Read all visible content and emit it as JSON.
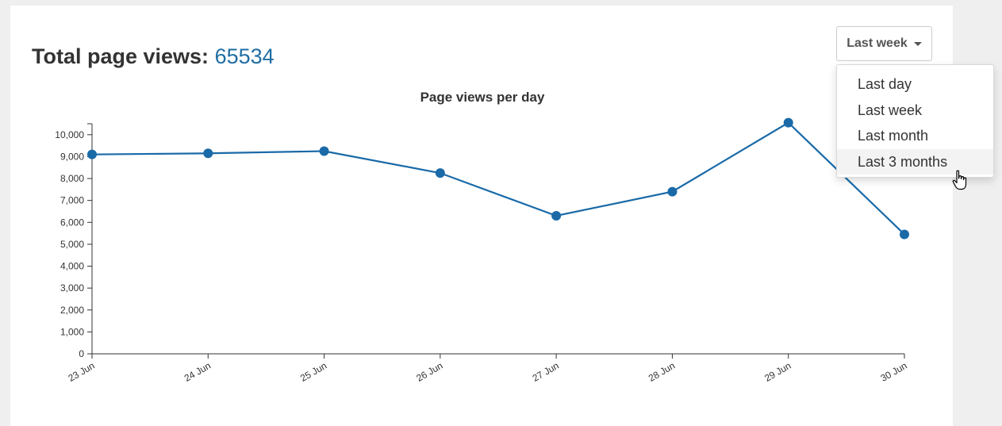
{
  "header": {
    "total_label": "Total page views:",
    "total_value": "65534"
  },
  "range_selector": {
    "selected": "Last week",
    "caret_icon": "caret-down-icon",
    "options": [
      "Last day",
      "Last week",
      "Last month",
      "Last 3 months"
    ],
    "hovered_index": 3
  },
  "colors": {
    "accent": "#1f6ea3",
    "line": "#1a6aa8",
    "text": "#333333"
  },
  "chart_data": {
    "type": "line",
    "title": "Page views per day",
    "xlabel": "",
    "ylabel": "",
    "categories": [
      "23 Jun",
      "24 Jun",
      "25 Jun",
      "26 Jun",
      "27 Jun",
      "28 Jun",
      "29 Jun",
      "30 Jun"
    ],
    "series": [
      {
        "values": [
          9100,
          9150,
          9250,
          8250,
          6300,
          7400,
          10550,
          5450
        ]
      }
    ],
    "ylim": [
      0,
      10500
    ],
    "yticks": [
      0,
      1000,
      2000,
      3000,
      4000,
      5000,
      6000,
      7000,
      8000,
      9000,
      10000
    ],
    "ytick_labels": [
      "0",
      "1,000",
      "2,000",
      "3,000",
      "4,000",
      "5,000",
      "6,000",
      "7,000",
      "8,000",
      "9,000",
      "10,000"
    ],
    "grid": false,
    "legend": "none"
  }
}
